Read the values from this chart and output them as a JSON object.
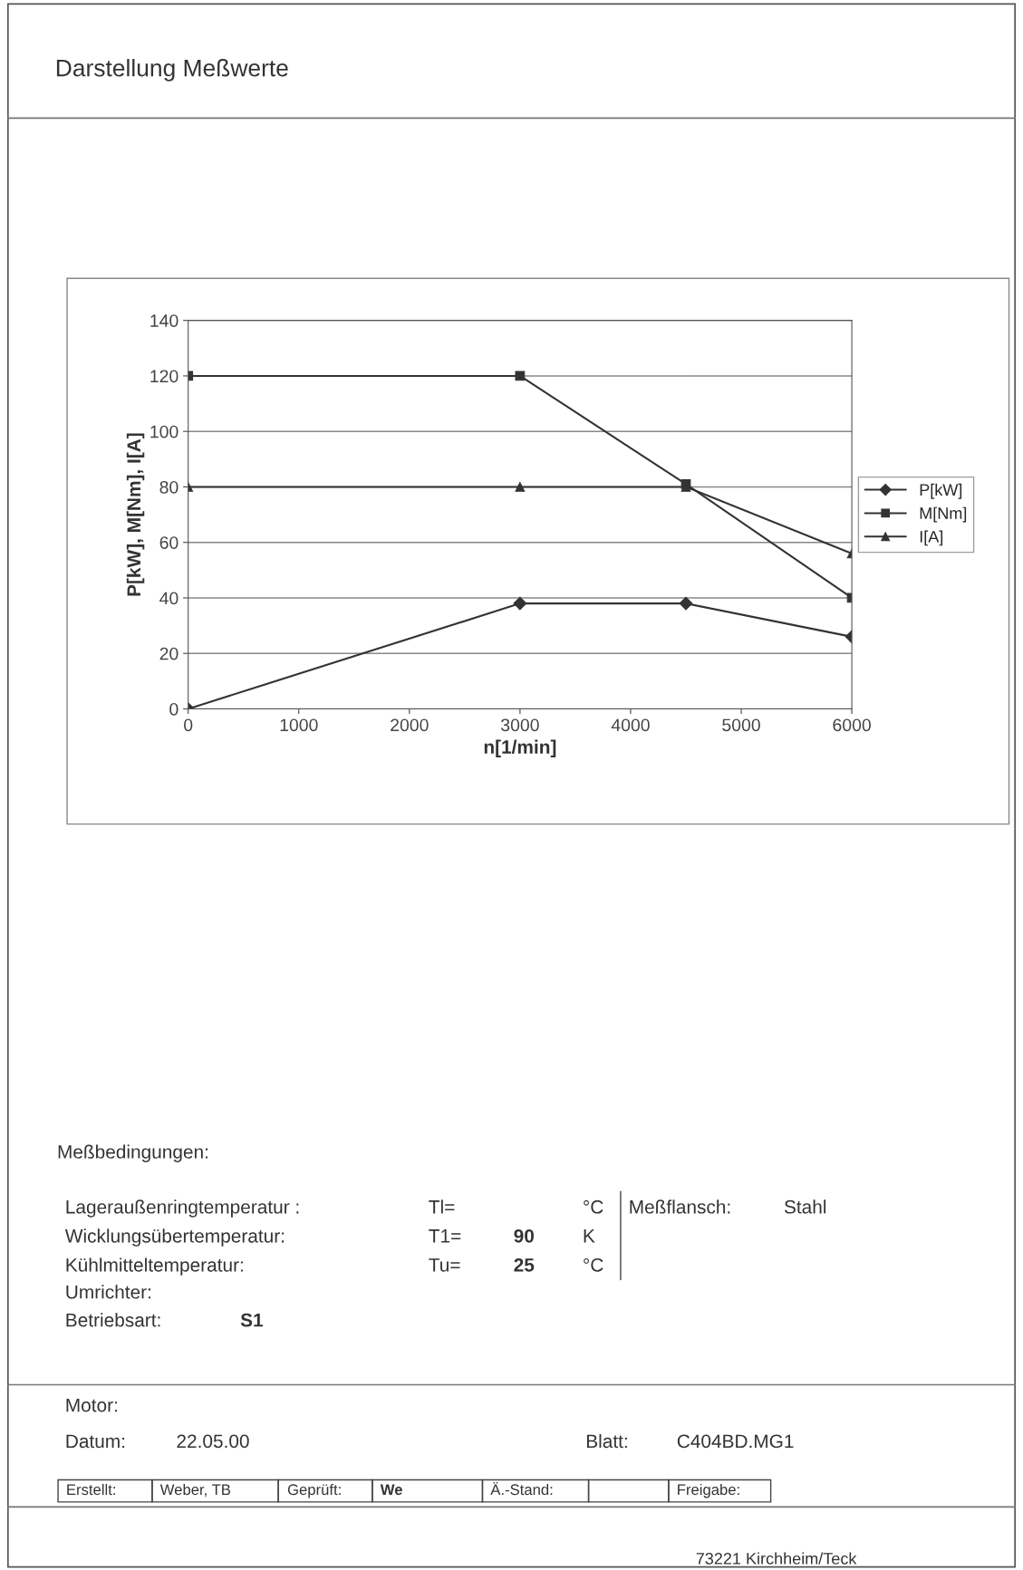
{
  "chart_data": {
    "type": "line",
    "title": "Darstellung Meßwerte",
    "xlabel": "n[1/min]",
    "ylabel": "P[kW], M[Nm], I[A]",
    "x": [
      0,
      3000,
      4500,
      6000
    ],
    "series": [
      {
        "name": "P[kW]",
        "color": "#333333",
        "marker": "diamond",
        "values": [
          0,
          38,
          38,
          26
        ]
      },
      {
        "name": "M[Nm]",
        "color": "#333333",
        "marker": "square",
        "values": [
          120,
          120,
          81,
          40
        ]
      },
      {
        "name": "I[A]",
        "color": "#333333",
        "marker": "triangle",
        "values": [
          80,
          80,
          80,
          56
        ]
      }
    ],
    "xlim": [
      0,
      6000
    ],
    "xticks": [
      0,
      1000,
      2000,
      3000,
      4000,
      5000,
      6000
    ],
    "ylim": [
      0,
      140
    ],
    "yticks": [
      0,
      20,
      40,
      60,
      80,
      100,
      120,
      140
    ],
    "grid": "y",
    "legend": "right",
    "line_style": "solid",
    "annotations": [
      "Meßbedingungen:",
      "Lageraußenringtemperatur :",
      "Tl=",
      "°C",
      "Meßflansch:",
      "Stahl",
      "Wicklungsübertemperatur:",
      "T1=",
      "90",
      "K",
      "Kühlmitteltemperatur:",
      "Tu=",
      "25",
      "°C",
      "Umrichter:",
      "Betriebsart:",
      "S1",
      "Motor:",
      "Datum:",
      "22.05.00",
      "Blatt:",
      "C404BD.MG1",
      "Erstellt:",
      "Weber, TB",
      "Geprüft:",
      "We",
      "Ä.-Stand:",
      "Freigabe:",
      "73221 Kirchheim/Teck"
    ]
  }
}
